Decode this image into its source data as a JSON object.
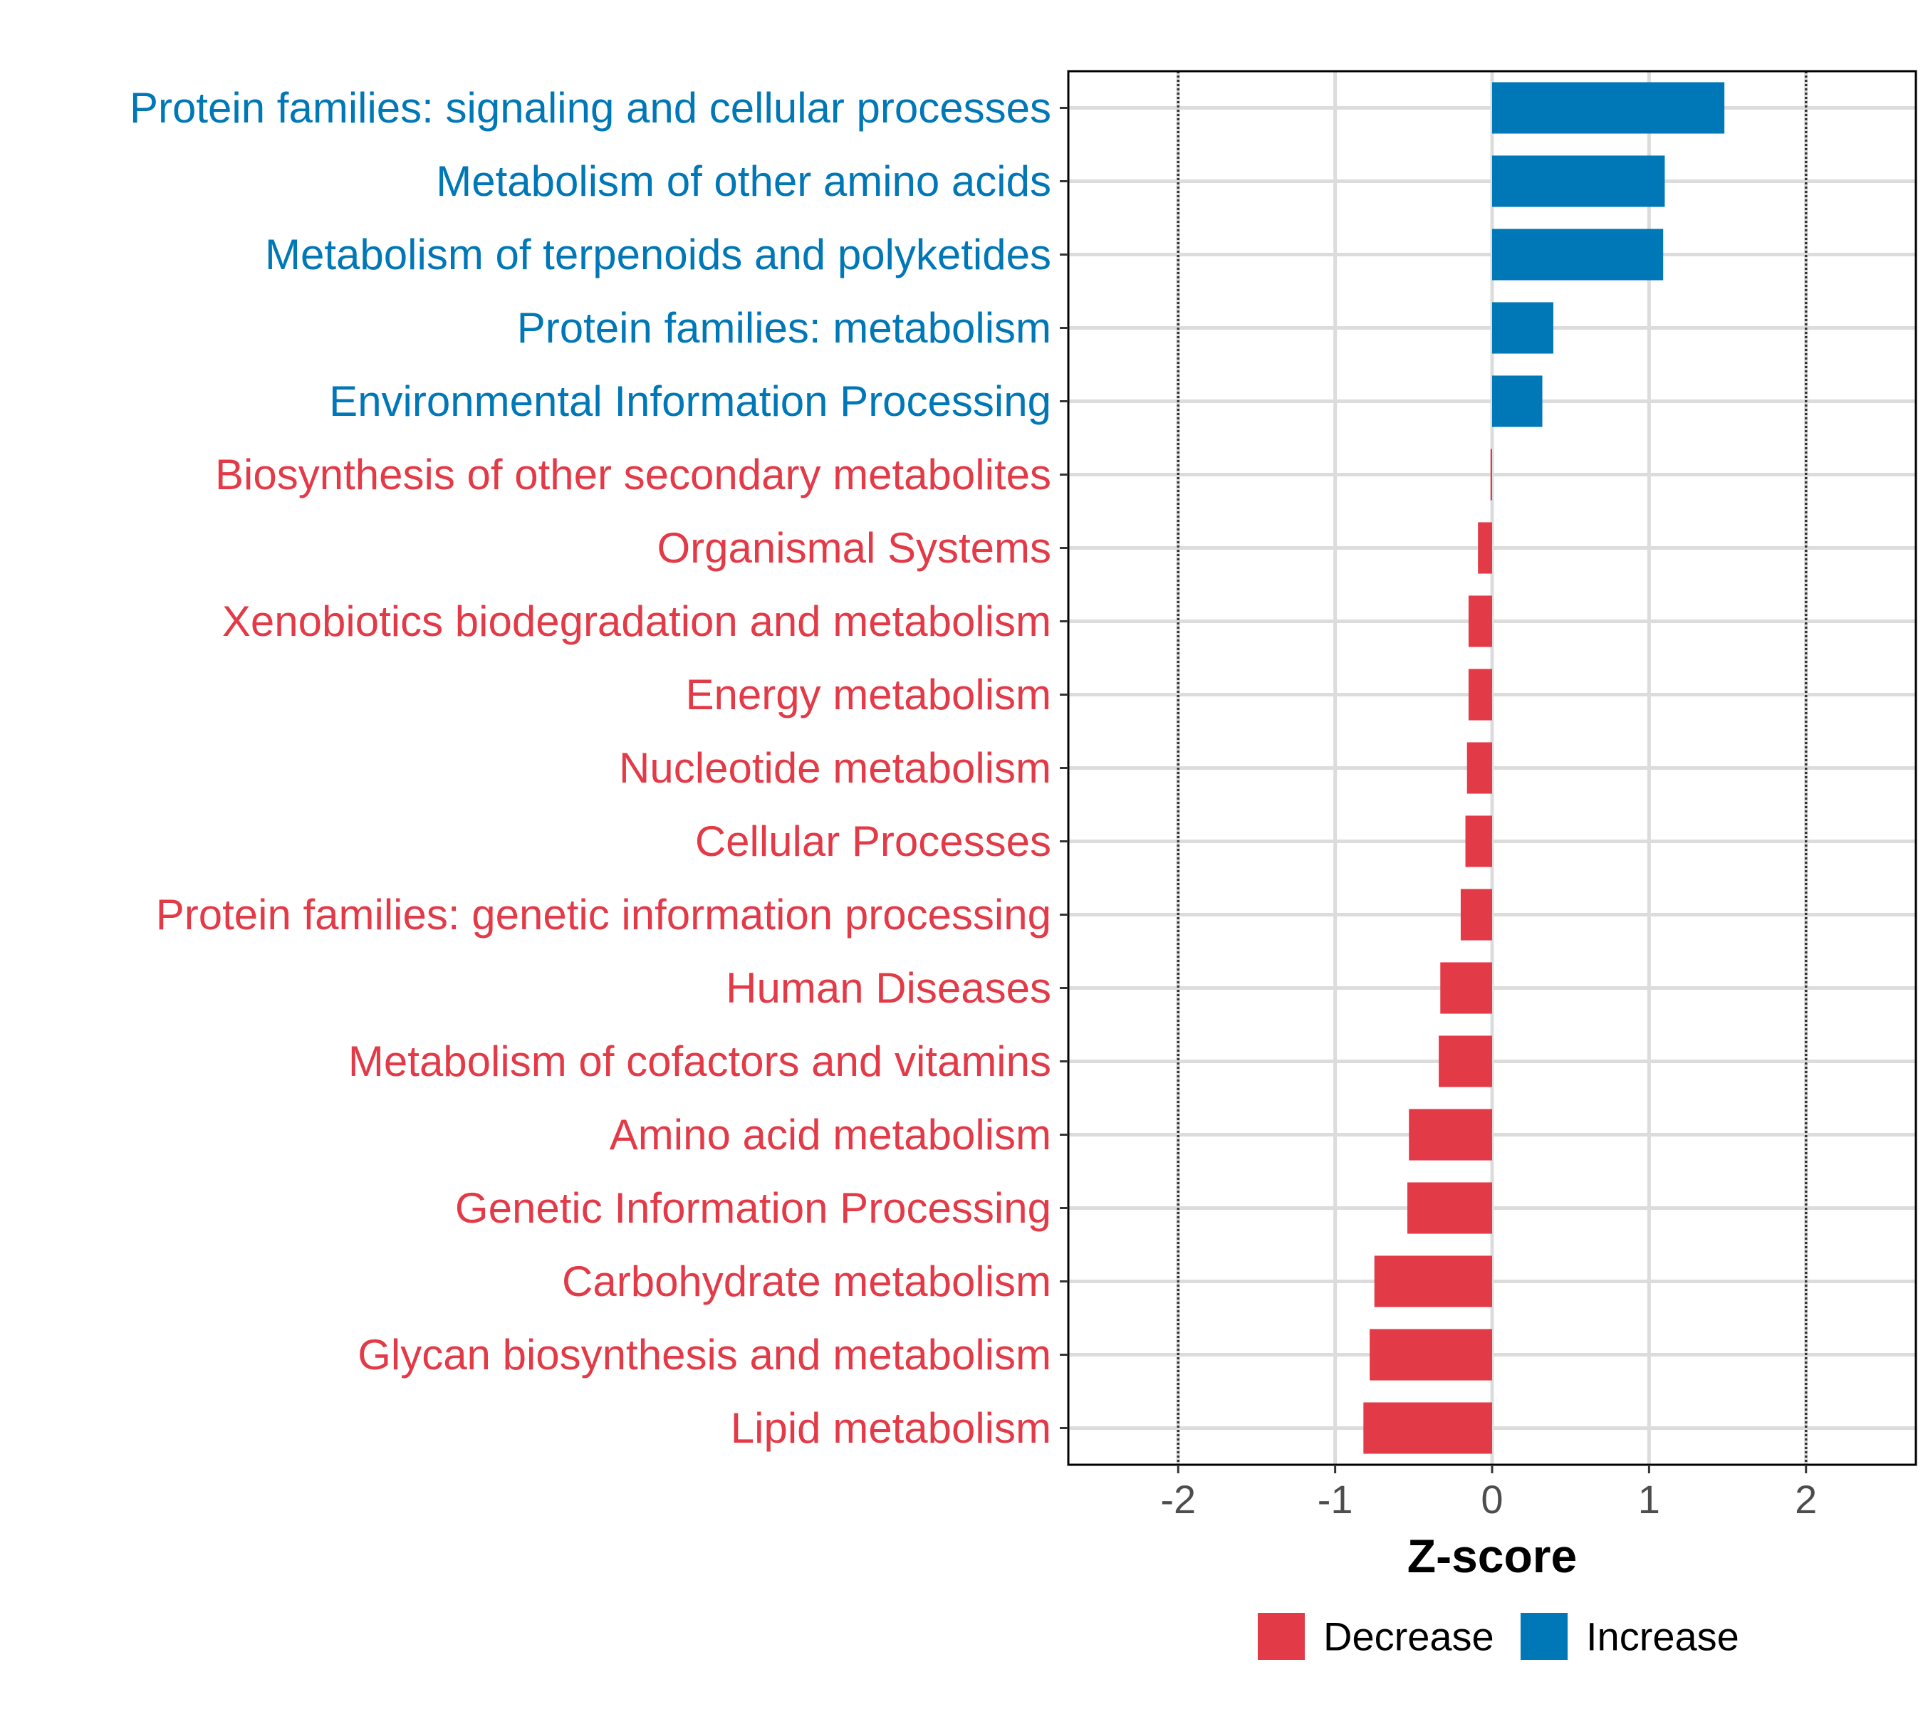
{
  "chart_data": {
    "type": "bar",
    "orientation": "horizontal",
    "xlabel": "Z-score",
    "xlim": [
      -2.7,
      2.7
    ],
    "xticks": [
      -2,
      -1,
      0,
      1,
      2
    ],
    "xtick_labels": [
      "-2",
      "-1",
      "0",
      "1",
      "2"
    ],
    "reference_lines": [
      -2,
      2
    ],
    "grid": true,
    "categories": [
      "Protein families: signaling and cellular processes",
      "Metabolism of other amino acids",
      "Metabolism of terpenoids and polyketides",
      "Protein families: metabolism",
      "Environmental Information Processing",
      "Biosynthesis of other secondary metabolites",
      "Organismal Systems",
      "Xenobiotics biodegradation and metabolism",
      "Energy metabolism",
      "Nucleotide metabolism",
      "Cellular Processes",
      "Protein families: genetic information processing",
      "Human Diseases",
      "Metabolism of cofactors and vitamins",
      "Amino acid metabolism",
      "Genetic Information Processing",
      "Carbohydrate metabolism",
      "Glycan biosynthesis and metabolism",
      "Lipid metabolism"
    ],
    "values": [
      1.48,
      1.1,
      1.09,
      0.39,
      0.32,
      -0.01,
      -0.09,
      -0.15,
      -0.15,
      -0.16,
      -0.17,
      -0.2,
      -0.33,
      -0.34,
      -0.53,
      -0.54,
      -0.75,
      -0.78,
      -0.82
    ],
    "groups": [
      "Increase",
      "Increase",
      "Increase",
      "Increase",
      "Increase",
      "Decrease",
      "Decrease",
      "Decrease",
      "Decrease",
      "Decrease",
      "Decrease",
      "Decrease",
      "Decrease",
      "Decrease",
      "Decrease",
      "Decrease",
      "Decrease",
      "Decrease",
      "Decrease"
    ],
    "legend": {
      "position": "bottom",
      "items": [
        {
          "label": "Decrease",
          "color": "#E33A48"
        },
        {
          "label": "Increase",
          "color": "#0077B6"
        }
      ]
    },
    "colors": {
      "Decrease": "#E33A48",
      "Increase": "#0077B6"
    }
  }
}
